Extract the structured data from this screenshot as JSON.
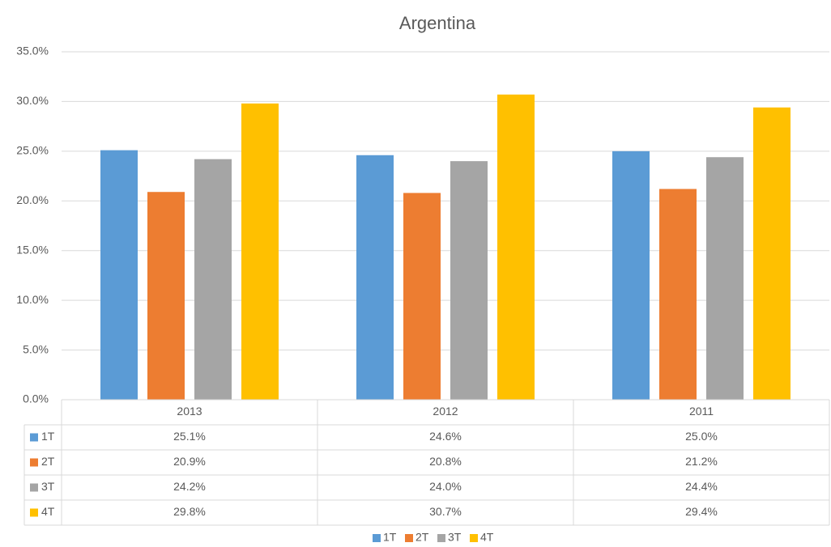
{
  "chart_data": {
    "type": "bar",
    "title": "Argentina",
    "categories": [
      "2013",
      "2012",
      "2011"
    ],
    "series": [
      {
        "name": "1T",
        "color": "#5b9bd5",
        "values": [
          25.1,
          24.6,
          25.0
        ],
        "value_labels": [
          "25.1%",
          "24.6%",
          "25.0%"
        ]
      },
      {
        "name": "2T",
        "color": "#ed7d31",
        "values": [
          20.9,
          20.8,
          21.2
        ],
        "value_labels": [
          "20.9%",
          "20.8%",
          "21.2%"
        ]
      },
      {
        "name": "3T",
        "color": "#a5a5a5",
        "values": [
          24.2,
          24.0,
          24.4
        ],
        "value_labels": [
          "24.2%",
          "24.0%",
          "24.4%"
        ]
      },
      {
        "name": "4T",
        "color": "#ffc000",
        "values": [
          29.8,
          30.7,
          29.4
        ],
        "value_labels": [
          "29.8%",
          "30.7%",
          "29.4%"
        ]
      }
    ],
    "ylim": [
      0,
      35
    ],
    "yticks": [
      {
        "value": 0,
        "label": "0.0%"
      },
      {
        "value": 5,
        "label": "5.0%"
      },
      {
        "value": 10,
        "label": "10.0%"
      },
      {
        "value": 15,
        "label": "15.0%"
      },
      {
        "value": 20,
        "label": "20.0%"
      },
      {
        "value": 25,
        "label": "25.0%"
      },
      {
        "value": 30,
        "label": "30.0%"
      },
      {
        "value": 35,
        "label": "35.0%"
      }
    ],
    "grid": true,
    "legend": "bottom"
  }
}
